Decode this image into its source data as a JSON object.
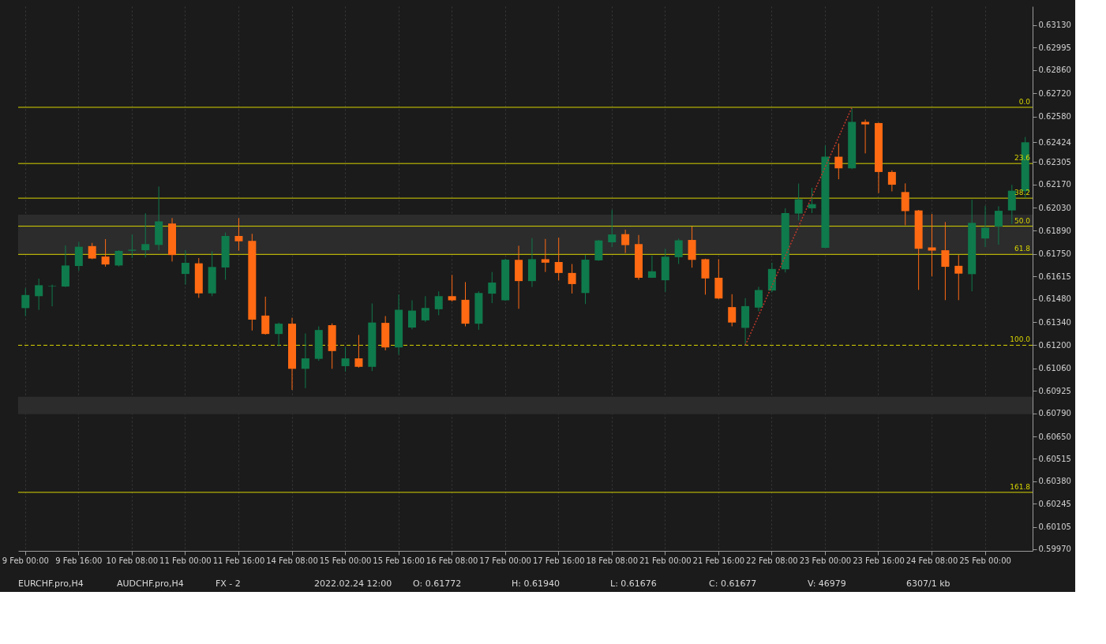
{
  "chart_data": {
    "type": "candlestick",
    "categories": [
      "9 Feb 00:00",
      null,
      null,
      null,
      "9 Feb 16:00",
      null,
      null,
      null,
      "10 Feb 08:00",
      null,
      null,
      null,
      "11 Feb 00:00",
      null,
      null,
      null,
      "11 Feb 16:00",
      null,
      null,
      null,
      "14 Feb 08:00",
      null,
      null,
      null,
      "15 Feb 00:00",
      null,
      null,
      null,
      "15 Feb 16:00",
      null,
      null,
      null,
      "16 Feb 08:00",
      null,
      null,
      null,
      "17 Feb 00:00",
      null,
      null,
      null,
      "17 Feb 16:00",
      null,
      null,
      null,
      "18 Feb 08:00",
      null,
      null,
      null,
      "21 Feb 00:00",
      null,
      null,
      null,
      "21 Feb 16:00",
      null,
      null,
      null,
      "22 Feb 08:00",
      null,
      null,
      null,
      "23 Feb 00:00",
      null,
      null,
      null,
      "23 Feb 16:00",
      null,
      null,
      null,
      "24 Feb 08:00",
      null,
      null,
      null,
      "25 Feb 00:00",
      null,
      null,
      null
    ],
    "ohlc": [
      [
        0.61424,
        0.61544,
        0.61376,
        0.61503
      ],
      [
        0.61496,
        0.61602,
        0.61413,
        0.61562
      ],
      [
        0.61554,
        0.61566,
        0.61435,
        0.61557
      ],
      [
        0.61554,
        0.61802,
        0.61551,
        0.61681
      ],
      [
        0.61678,
        0.61824,
        0.61649,
        0.61794
      ],
      [
        0.61798,
        0.61817,
        0.61719,
        0.61723
      ],
      [
        0.61735,
        0.6184,
        0.61674,
        0.61687
      ],
      [
        0.61681,
        0.61773,
        0.61675,
        0.61769
      ],
      [
        0.6177,
        0.61868,
        0.61726,
        0.61776
      ],
      [
        0.61773,
        0.61996,
        0.61729,
        0.6181
      ],
      [
        0.61805,
        0.62157,
        0.61773,
        0.61947
      ],
      [
        0.61934,
        0.61967,
        0.61705,
        0.61744
      ],
      [
        0.6163,
        0.61773,
        0.61566,
        0.61697
      ],
      [
        0.61694,
        0.61726,
        0.61486,
        0.61513
      ],
      [
        0.61513,
        0.61767,
        0.61496,
        0.61672
      ],
      [
        0.61669,
        0.6188,
        0.61595,
        0.61859
      ],
      [
        0.61859,
        0.61967,
        0.6177,
        0.61827
      ],
      [
        0.61829,
        0.61872,
        0.61289,
        0.61354
      ],
      [
        0.61379,
        0.61493,
        0.61264,
        0.61268
      ],
      [
        0.61268,
        0.61337,
        0.61194,
        0.6133
      ],
      [
        0.6133,
        0.61366,
        0.60931,
        0.61058
      ],
      [
        0.61058,
        0.61271,
        0.60941,
        0.61121
      ],
      [
        0.61118,
        0.61314,
        0.61106,
        0.61292
      ],
      [
        0.61321,
        0.61332,
        0.61058,
        0.61165
      ],
      [
        0.61074,
        0.61189,
        0.61041,
        0.61121
      ],
      [
        0.61121,
        0.61262,
        0.61065,
        0.6107
      ],
      [
        0.6107,
        0.61452,
        0.61044,
        0.61337
      ],
      [
        0.61335,
        0.61376,
        0.61169,
        0.61187
      ],
      [
        0.61187,
        0.61506,
        0.61143,
        0.61414
      ],
      [
        0.61307,
        0.61471,
        0.61296,
        0.61409
      ],
      [
        0.6135,
        0.61496,
        0.6134,
        0.61425
      ],
      [
        0.61417,
        0.61525,
        0.61381,
        0.61496
      ],
      [
        0.61496,
        0.61624,
        0.61464,
        0.61471
      ],
      [
        0.61474,
        0.61581,
        0.61314,
        0.6133
      ],
      [
        0.6133,
        0.61525,
        0.61293,
        0.61515
      ],
      [
        0.61511,
        0.61642,
        0.61454,
        0.61578
      ],
      [
        0.61471,
        0.61722,
        0.61468,
        0.61716
      ],
      [
        0.61715,
        0.618,
        0.6142,
        0.61587
      ],
      [
        0.61587,
        0.61846,
        0.61552,
        0.61719
      ],
      [
        0.61719,
        0.61841,
        0.61642,
        0.61698
      ],
      [
        0.61702,
        0.61849,
        0.61591,
        0.61636
      ],
      [
        0.61636,
        0.6169,
        0.61512,
        0.61569
      ],
      [
        0.61515,
        0.61744,
        0.61449,
        0.61716
      ],
      [
        0.61712,
        0.61835,
        0.61709,
        0.61832
      ],
      [
        0.61821,
        0.62018,
        0.61792,
        0.61868
      ],
      [
        0.6187,
        0.61897,
        0.61756,
        0.61804
      ],
      [
        0.6181,
        0.61865,
        0.61595,
        0.61607
      ],
      [
        0.61607,
        0.61741,
        0.61606,
        0.61646
      ],
      [
        0.61592,
        0.61782,
        0.61522,
        0.61734
      ],
      [
        0.61731,
        0.61843,
        0.6169,
        0.61833
      ],
      [
        0.61835,
        0.61916,
        0.61668,
        0.61715
      ],
      [
        0.61719,
        0.61722,
        0.61505,
        0.61603
      ],
      [
        0.61607,
        0.61719,
        0.61479,
        0.61482
      ],
      [
        0.6143,
        0.61508,
        0.61314,
        0.61337
      ],
      [
        0.61305,
        0.61484,
        0.612,
        0.61436
      ],
      [
        0.61427,
        0.61552,
        0.61405,
        0.61533
      ],
      [
        0.6153,
        0.61698,
        0.6152,
        0.6166
      ],
      [
        0.61658,
        0.62026,
        0.61639,
        0.61997
      ],
      [
        0.61994,
        0.62175,
        0.61953,
        0.6208
      ],
      [
        0.62026,
        0.6215,
        0.61997,
        0.62051
      ],
      [
        0.61788,
        0.62405,
        0.61785,
        0.62337
      ],
      [
        0.62337,
        0.62417,
        0.62201,
        0.62267
      ],
      [
        0.62267,
        0.62635,
        0.62262,
        0.62547
      ],
      [
        0.62547,
        0.62561,
        0.62357,
        0.62532
      ],
      [
        0.6254,
        0.62542,
        0.62118,
        0.62245
      ],
      [
        0.62245,
        0.62255,
        0.62128,
        0.62168
      ],
      [
        0.62124,
        0.62176,
        0.61924,
        0.62009
      ],
      [
        0.62013,
        0.62016,
        0.61534,
        0.61782
      ],
      [
        0.6179,
        0.61992,
        0.61615,
        0.61771
      ],
      [
        0.61773,
        0.61943,
        0.61472,
        0.61673
      ],
      [
        0.61679,
        0.61744,
        0.61472,
        0.61632
      ],
      [
        0.61629,
        0.62077,
        0.61525,
        0.61938
      ],
      [
        0.61844,
        0.62041,
        0.61792,
        0.61909
      ],
      [
        0.61916,
        0.62038,
        0.61807,
        0.62011
      ],
      [
        0.62013,
        0.62167,
        0.61931,
        0.62132
      ],
      [
        0.62129,
        0.62456,
        0.62089,
        0.62424
      ]
    ],
    "colors": [
      "#0f7a4c",
      "#0f7a4c",
      "#0f7a4c",
      "#0f7a4c",
      "#0f7a4c",
      "#ff6a13",
      "#ff6a13",
      "#0f7a4c",
      "#0f7a4c",
      "#0f7a4c",
      "#0f7a4c",
      "#ff6a13",
      "#0f7a4c",
      "#ff6a13",
      "#0f7a4c",
      "#0f7a4c",
      "#ff6a13",
      "#ff6a13",
      "#ff6a13",
      "#0f7a4c",
      "#ff6a13",
      "#0f7a4c",
      "#0f7a4c",
      "#ff6a13",
      "#0f7a4c",
      "#ff6a13",
      "#0f7a4c",
      "#ff6a13",
      "#0f7a4c",
      "#0f7a4c",
      "#0f7a4c",
      "#0f7a4c",
      "#ff6a13",
      "#ff6a13",
      "#0f7a4c",
      "#0f7a4c",
      "#0f7a4c",
      "#ff6a13",
      "#0f7a4c",
      "#ff6a13",
      "#ff6a13",
      "#ff6a13",
      "#0f7a4c",
      "#0f7a4c",
      "#0f7a4c",
      "#ff6a13",
      "#ff6a13",
      "#0f7a4c",
      "#0f7a4c",
      "#0f7a4c",
      "#ff6a13",
      "#ff6a13",
      "#ff6a13",
      "#ff6a13",
      "#0f7a4c",
      "#0f7a4c",
      "#0f7a4c",
      "#0f7a4c",
      "#0f7a4c",
      "#0f7a4c",
      "#0f7a4c",
      "#ff6a13",
      "#0f7a4c",
      "#ff6a13",
      "#ff6a13",
      "#ff6a13",
      "#ff6a13",
      "#ff6a13",
      "#ff6a13",
      "#ff6a13",
      "#ff6a13",
      "#0f7a4c",
      "#0f7a4c",
      "#0f7a4c",
      "#0f7a4c",
      "#0f7a4c"
    ],
    "series": [
      {
        "type": "line",
        "color": "#c0392b",
        "line_style": "dotted",
        "values": [
          null,
          null,
          null,
          null,
          null,
          null,
          null,
          null,
          null,
          null,
          null,
          null,
          null,
          null,
          null,
          null,
          null,
          null,
          null,
          null,
          null,
          null,
          null,
          null,
          null,
          null,
          null,
          null,
          null,
          null,
          null,
          null,
          null,
          null,
          null,
          null,
          null,
          null,
          null,
          null,
          null,
          null,
          null,
          null,
          null,
          null,
          null,
          null,
          null,
          null,
          null,
          null,
          null,
          null,
          0.612,
          null,
          null,
          null,
          null,
          null,
          null,
          null,
          0.62635,
          null,
          null,
          null,
          null,
          null,
          null,
          null,
          null,
          null,
          null,
          null,
          null,
          null
        ]
      }
    ],
    "ylim": [
      0.5996,
      0.63244
    ],
    "yticks": [
      {
        "value": 0.6313,
        "label": "0.63130"
      },
      {
        "value": 0.62995,
        "label": "0.62995"
      },
      {
        "value": 0.6286,
        "label": "0.62860"
      },
      {
        "value": 0.6272,
        "label": "0.62720"
      },
      {
        "value": 0.6258,
        "label": "0.62580"
      },
      {
        "value": 0.62424,
        "label": "0.62424"
      },
      {
        "value": 0.62305,
        "label": "0.62305"
      },
      {
        "value": 0.6217,
        "label": "0.62170"
      },
      {
        "value": 0.6203,
        "label": "0.62030"
      },
      {
        "value": 0.6189,
        "label": "0.61890"
      },
      {
        "value": 0.6175,
        "label": "0.61750"
      },
      {
        "value": 0.61615,
        "label": "0.61615"
      },
      {
        "value": 0.6148,
        "label": "0.61480"
      },
      {
        "value": 0.6134,
        "label": "0.61340"
      },
      {
        "value": 0.612,
        "label": "0.61200"
      },
      {
        "value": 0.6106,
        "label": "0.61060"
      },
      {
        "value": 0.60925,
        "label": "0.60925"
      },
      {
        "value": 0.6079,
        "label": "0.60790"
      },
      {
        "value": 0.6065,
        "label": "0.60650"
      },
      {
        "value": 0.60515,
        "label": "0.60515"
      },
      {
        "value": 0.6038,
        "label": "0.60380"
      },
      {
        "value": 0.60245,
        "label": "0.60245"
      },
      {
        "value": 0.60105,
        "label": "0.60105"
      },
      {
        "value": 0.5997,
        "label": "0.59970"
      }
    ],
    "grid": "x",
    "ref_lines": [
      {
        "axis": "y",
        "value": 0.62635,
        "color": "#d8d400"
      },
      {
        "axis": "y",
        "value": 0.62296,
        "color": "#d8d400"
      },
      {
        "axis": "y",
        "value": 0.62087,
        "color": "#d8d400"
      },
      {
        "axis": "y",
        "value": 0.61918,
        "color": "#d8d400"
      },
      {
        "axis": "y",
        "value": 0.61748,
        "color": "#d8d400"
      },
      {
        "axis": "y",
        "value": 0.612,
        "color": "#d8d400",
        "line_style": "dashed"
      },
      {
        "axis": "y",
        "value": 0.60313,
        "color": "#d8d400"
      }
    ],
    "bands": [
      {
        "axis": "y",
        "from": 0.61747,
        "to": 0.61988,
        "color": "#2c2c2c"
      },
      {
        "axis": "y",
        "from": 0.60784,
        "to": 0.60889,
        "color": "#2c2c2c"
      }
    ],
    "annotations": [
      {
        "text": "0.0",
        "y": 0.62635
      },
      {
        "text": "23.6",
        "y": 0.62296
      },
      {
        "text": "38.2",
        "y": 0.62087
      },
      {
        "text": "50.0",
        "y": 0.61918
      },
      {
        "text": "61.8",
        "y": 0.61748
      },
      {
        "text": "100.0",
        "y": 0.612
      },
      {
        "text": "161.8",
        "y": 0.60313
      },
      "EURCHF.pro,H4",
      "AUDCHF.pro,H4",
      "FX - 2",
      "2022.02.24 12:00",
      "O: 0.61772",
      "H: 0.61940",
      "L: 0.61676",
      "C: 0.61677",
      "V: 46979",
      "6307/1 kb"
    ]
  }
}
